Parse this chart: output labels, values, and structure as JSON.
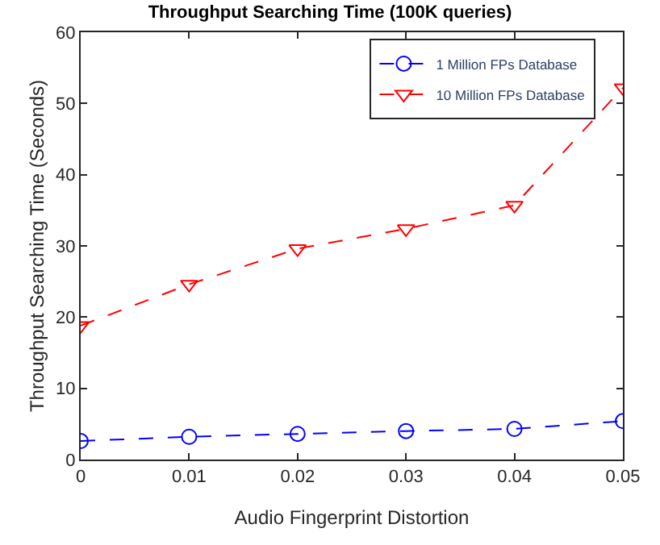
{
  "chart_data": {
    "type": "line",
    "title": "Throughput Searching Time (100K queries)",
    "xlabel": "Audio Fingerprint Distortion",
    "ylabel": "Throughput Searching Time (Seconds)",
    "x": [
      0,
      0.01,
      0.02,
      0.03,
      0.04,
      0.05
    ],
    "series": [
      {
        "name": "1 Million FPs Database",
        "color": "#0000ff",
        "marker": "circle",
        "values": [
          2.6,
          3.2,
          3.6,
          4.0,
          4.3,
          5.4
        ]
      },
      {
        "name": "10 Million FPs Database",
        "color": "#ff0000",
        "marker": "triangle",
        "values": [
          18.8,
          24.6,
          29.6,
          32.4,
          35.7,
          52.2
        ]
      }
    ],
    "line_style": "dashed",
    "xlim": [
      0,
      0.05
    ],
    "xticks": [
      0,
      0.01,
      0.02,
      0.03,
      0.04,
      0.05
    ],
    "ylim": [
      0,
      60
    ],
    "yticks": [
      0,
      10,
      20,
      30,
      40,
      50,
      60
    ],
    "legend": "top right"
  }
}
